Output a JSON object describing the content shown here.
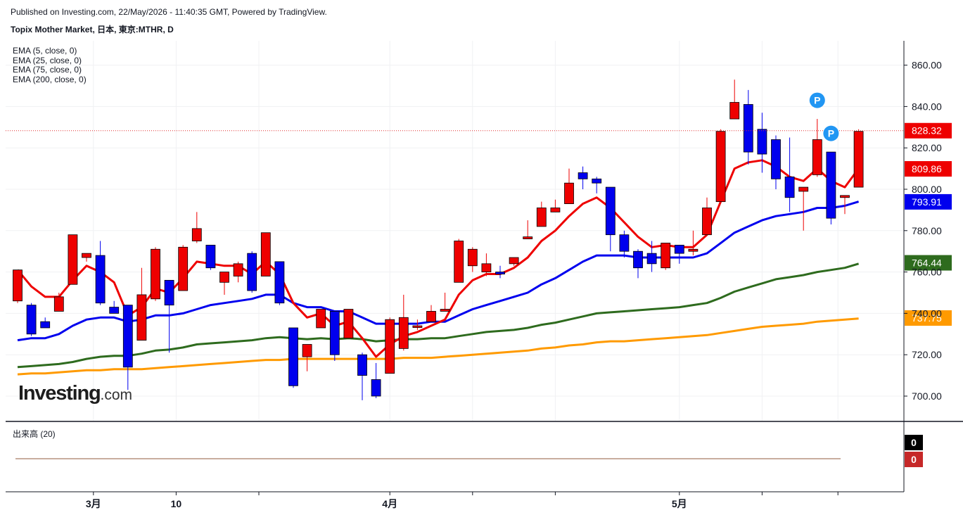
{
  "header": {
    "published": "Published on Investing.com, 22/May/2026 - 11:40:35 GMT, Powered by TradingView.",
    "title": "Topix Mother Market, 日本, 東京:MTHR, D"
  },
  "legend": {
    "items": [
      "EMA (5, close, 0)",
      "EMA (25, close, 0)",
      "EMA (75, close, 0)",
      "EMA (200, close, 0)"
    ]
  },
  "logo": {
    "main": "Investing",
    "suffix": ".com"
  },
  "volume_pane": {
    "label": "出来高 (20)",
    "badge_top": "0",
    "badge_bottom": "0"
  },
  "colors": {
    "up": "#ee0000",
    "down": "#0000ee",
    "ema5": "#ee0000",
    "ema25": "#0000ee",
    "ema75": "#2e6b1e",
    "ema200": "#ff9a00",
    "last_price_line": "#e03030",
    "marker": "#2196f3"
  },
  "chart_data": {
    "type": "candlestick",
    "y_axis": {
      "ticks": [
        700,
        720,
        740,
        760,
        780,
        800,
        820,
        840,
        860
      ],
      "tick_labels": [
        "700.00",
        "720.00",
        "740.00",
        "760.00",
        "780.00",
        "800.00",
        "820.00",
        "840.00",
        "860.00"
      ]
    },
    "x_axis": {
      "labels": [
        {
          "label": "3月",
          "index": 5.5
        },
        {
          "label": "10",
          "index": 11.5
        },
        {
          "label": "4月",
          "index": 27
        },
        {
          "label": "5月",
          "index": 48
        }
      ]
    },
    "candles": [
      [
        746,
        761,
        745,
        761
      ],
      [
        744,
        730,
        729,
        745
      ],
      [
        736,
        733,
        733,
        738
      ],
      [
        741,
        748,
        741,
        750
      ],
      [
        754,
        778,
        754,
        778
      ],
      [
        767,
        769,
        765,
        769
      ],
      [
        768,
        745,
        744,
        775
      ],
      [
        743,
        740,
        740,
        746
      ],
      [
        744,
        714,
        703,
        744
      ],
      [
        727,
        749,
        727,
        762
      ],
      [
        747,
        771,
        746,
        772
      ],
      [
        756,
        744,
        721,
        756
      ],
      [
        751,
        772,
        751,
        773
      ],
      [
        775,
        781,
        774,
        789
      ],
      [
        773,
        762,
        761,
        773
      ],
      [
        755,
        760,
        749,
        760
      ],
      [
        758,
        764,
        755,
        765
      ],
      [
        769,
        751,
        750,
        770
      ],
      [
        758,
        779,
        758,
        779
      ],
      [
        765,
        745,
        744,
        765
      ],
      [
        733,
        705,
        704,
        733
      ],
      [
        719,
        725,
        712,
        725
      ],
      [
        733,
        742,
        733,
        742
      ],
      [
        741,
        720,
        717,
        741
      ],
      [
        728,
        742,
        728,
        742
      ],
      [
        720,
        710,
        698,
        721
      ],
      [
        708,
        700,
        699,
        716
      ],
      [
        711,
        737,
        711,
        738
      ],
      [
        723,
        738,
        722,
        749
      ],
      [
        734,
        734,
        732,
        737
      ],
      [
        736,
        741,
        736,
        744
      ],
      [
        741,
        742,
        741,
        750
      ],
      [
        755,
        775,
        755,
        776
      ],
      [
        763,
        771,
        760,
        772
      ],
      [
        760,
        764,
        758,
        769
      ],
      [
        760,
        759,
        757,
        763
      ],
      [
        764,
        767,
        763,
        767
      ],
      [
        776,
        777,
        776,
        785
      ],
      [
        782,
        791,
        782,
        794
      ],
      [
        789,
        791,
        789,
        795
      ],
      [
        793,
        803,
        793,
        810
      ],
      [
        808,
        805,
        800,
        811
      ],
      [
        805,
        803,
        798,
        806
      ],
      [
        801,
        778,
        770,
        801
      ],
      [
        778,
        770,
        767,
        780
      ],
      [
        770,
        762,
        757,
        771
      ],
      [
        769,
        764,
        760,
        775
      ],
      [
        762,
        774,
        761,
        774
      ],
      [
        773,
        769,
        764,
        773
      ],
      [
        770,
        771,
        768,
        780
      ],
      [
        778,
        791,
        778,
        796
      ],
      [
        794,
        828,
        794,
        829
      ],
      [
        834,
        842,
        834,
        853
      ],
      [
        841,
        818,
        812,
        848
      ],
      [
        829,
        817,
        808,
        837
      ],
      [
        824,
        805,
        800,
        826
      ],
      [
        806,
        796,
        789,
        825
      ],
      [
        799,
        801,
        780,
        801
      ],
      [
        807,
        824,
        806,
        834
      ],
      [
        818,
        786,
        783,
        818
      ],
      [
        796,
        797,
        788,
        797
      ],
      [
        801,
        828,
        801,
        829
      ]
    ],
    "series": [
      {
        "name": "EMA (5, close, 0)",
        "values": [
          761,
          753,
          748,
          748,
          756,
          763,
          760,
          755,
          739,
          743,
          752,
          750,
          757,
          765,
          764,
          763,
          763,
          759,
          765,
          759,
          745,
          738,
          740,
          734,
          736,
          728,
          719,
          725,
          729,
          731,
          734,
          737,
          749,
          756,
          759,
          759,
          762,
          767,
          775,
          780,
          787,
          793,
          796,
          791,
          784,
          777,
          772,
          773,
          772,
          772,
          778,
          794,
          810,
          813,
          814,
          811,
          806,
          804,
          810,
          804,
          801,
          810
        ]
      },
      {
        "name": "EMA (25, close, 0)",
        "values": [
          727,
          728,
          728,
          730,
          734,
          737,
          738,
          738,
          736,
          737,
          739,
          739,
          740,
          742,
          744,
          745,
          746,
          747,
          749,
          749,
          745,
          743,
          743,
          741,
          741,
          738,
          735,
          735,
          735,
          735,
          736,
          736,
          739,
          742,
          744,
          746,
          748,
          750,
          754,
          757,
          761,
          765,
          768,
          768,
          768,
          767,
          767,
          767,
          767,
          767,
          769,
          774,
          779,
          782,
          785,
          787,
          788,
          789,
          791,
          791,
          792,
          794
        ]
      },
      {
        "name": "EMA (75, close, 0)",
        "values": [
          714,
          714.5,
          715,
          715.5,
          716.5,
          718,
          719,
          719.5,
          719.5,
          720.5,
          722,
          722.5,
          723.5,
          725,
          725.5,
          726,
          726.5,
          727,
          728,
          728.5,
          728,
          727.5,
          728,
          727.5,
          728,
          727.5,
          726.5,
          727,
          727.5,
          727.5,
          728,
          728,
          729,
          730,
          731,
          731.5,
          732,
          733,
          734.5,
          735.5,
          737,
          738.5,
          740,
          740.5,
          741,
          741.5,
          742,
          742.5,
          743,
          744,
          745,
          747.5,
          750.5,
          752.5,
          754.5,
          756.5,
          757.5,
          758.5,
          760,
          761,
          762,
          764
        ]
      },
      {
        "name": "EMA (200, close, 0)",
        "values": [
          710.5,
          711,
          711,
          711.5,
          712,
          712.5,
          712.5,
          713,
          713,
          713,
          713.5,
          714,
          714.5,
          715,
          715.5,
          716,
          716.5,
          717,
          717.5,
          717.5,
          718,
          718,
          718,
          718,
          718,
          718,
          718,
          718,
          718.5,
          718.5,
          718.5,
          719,
          719.5,
          720,
          720.5,
          721,
          721.5,
          722,
          723,
          723.5,
          724.5,
          725,
          726,
          726.5,
          726.5,
          727,
          727.5,
          728,
          728.5,
          729,
          729.5,
          730.5,
          731.5,
          732.5,
          733.5,
          734,
          734.5,
          735,
          736,
          736.5,
          737,
          737.5
        ]
      }
    ],
    "price_labels": [
      {
        "text": "828.32",
        "value": 828.32,
        "color": "#ee0000"
      },
      {
        "text": "809.86",
        "value": 809.86,
        "color": "#ee0000"
      },
      {
        "text": "793.91",
        "value": 793.91,
        "color": "#0000ee"
      },
      {
        "text": "764.44",
        "value": 764.44,
        "color": "#2e6b1e"
      },
      {
        "text": "737.75",
        "value": 737.75,
        "color": "#ff9a00"
      }
    ],
    "markers": [
      {
        "text": "P",
        "index": 58,
        "value": 843
      },
      {
        "text": "P",
        "index": 59,
        "value": 827
      }
    ],
    "last_price": 828.32
  }
}
